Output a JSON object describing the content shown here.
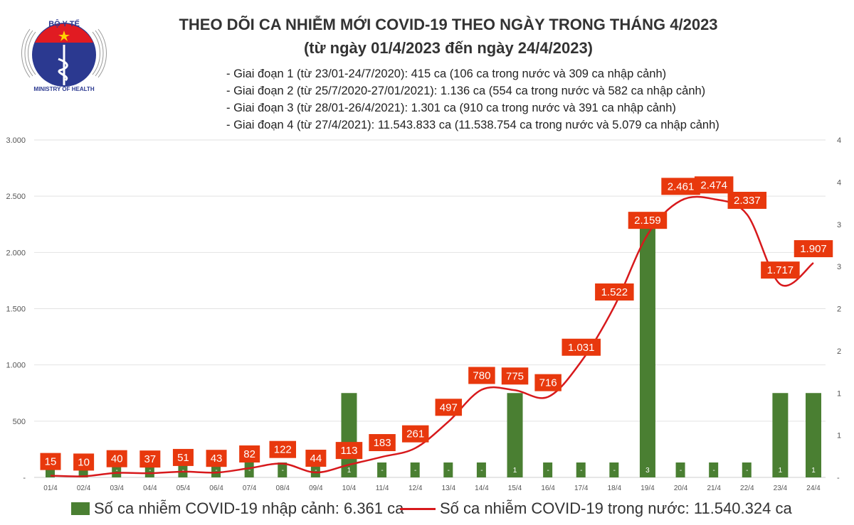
{
  "header": {
    "title_line1": "THEO DÕI CA NHIỄM MỚI COVID-19 THEO NGÀY TRONG THÁNG 4/2023",
    "title_line2": "(từ ngày 01/4/2023 đến ngày 24/4/2023)",
    "notes": [
      "- Giai đoạn 1 (từ 23/01-24/7/2020): 415 ca (106 ca trong nước và 309 ca nhập cảnh)",
      "- Giai đoạn 2 (từ 25/7/2020-27/01/2021): 1.136 ca (554 ca trong nước và 582 ca nhập cảnh)",
      "- Giai đoạn 3 (từ 28/01-26/4/2021): 1.301 ca (910 ca trong nước và 391 ca nhập cảnh)",
      "- Giai đoạn 4 (từ 27/4/2021): 11.543.833 ca (11.538.754 ca trong nước và 5.079 ca nhập cảnh)"
    ],
    "logo_text": "BỘ Y TẾ — MINISTRY OF HEALTH"
  },
  "chart_data": {
    "type": "bar+line",
    "categories": [
      "01/4",
      "02/4",
      "03/4",
      "04/4",
      "05/4",
      "06/4",
      "07/4",
      "08/4",
      "09/4",
      "10/4",
      "11/4",
      "12/4",
      "13/4",
      "14/4",
      "15/4",
      "16/4",
      "17/4",
      "18/4",
      "19/4",
      "20/4",
      "21/4",
      "22/4",
      "23/4",
      "24/4"
    ],
    "series": [
      {
        "name": "Số ca nhiễm COVID-19 nhập cảnh: 6.361 ca",
        "type": "bar",
        "axis": "right",
        "color": "#4a7f32",
        "values": [
          0,
          0,
          0,
          0,
          0,
          0,
          0,
          0,
          0,
          1,
          0,
          0,
          0,
          0,
          1,
          0,
          0,
          0,
          3,
          0,
          0,
          0,
          1,
          1
        ],
        "labels": [
          "",
          "",
          "-",
          "-",
          "-",
          "-",
          "-",
          "-",
          "-",
          "1",
          "-",
          "-",
          "-",
          "-",
          "1",
          "-",
          "-",
          "-",
          "3",
          "-",
          "-",
          "-",
          "1",
          "1"
        ]
      },
      {
        "name": "Số ca nhiễm COVID-19 trong nước: 11.540.324 ca",
        "type": "line",
        "axis": "left",
        "color": "#d7191c",
        "label_color": "#e8380d",
        "values": [
          15,
          10,
          40,
          37,
          51,
          43,
          82,
          122,
          44,
          113,
          183,
          261,
          497,
          780,
          775,
          716,
          1031,
          1522,
          2159,
          2461,
          2474,
          2337,
          1717,
          1907
        ],
        "labels": [
          "15",
          "10",
          "40",
          "37",
          "51",
          "43",
          "82",
          "122",
          "44",
          "113",
          "183",
          "261",
          "497",
          "780",
          "775",
          "716",
          "1.031",
          "1.522",
          "2.159",
          "2.461",
          "2.474",
          "2.337",
          "1.717",
          "1.907"
        ]
      }
    ],
    "left_axis": {
      "ylim": [
        0,
        3000
      ],
      "ticks": [
        "-",
        "500",
        "1.000",
        "1.500",
        "2.000",
        "2.500",
        "3.000"
      ]
    },
    "right_axis": {
      "ylim": [
        0,
        4
      ],
      "ticks": [
        "-",
        "1",
        "1",
        "2",
        "2",
        "3",
        "3",
        "4",
        "4"
      ]
    },
    "grid": true,
    "legend": "bottom"
  }
}
